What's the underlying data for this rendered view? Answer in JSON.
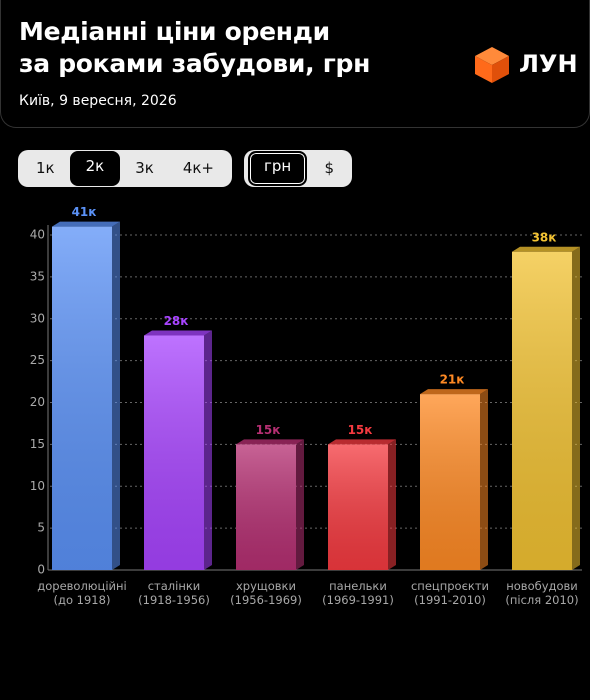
{
  "header": {
    "title": "Медіанні ціни оренди\nза роками забудови, грн",
    "subtitle": "Київ, 9 вересня, 2026",
    "logo": "ЛУН"
  },
  "controls": {
    "rooms": {
      "options": [
        "1к",
        "2к",
        "3к",
        "4к+"
      ],
      "selected": 1
    },
    "currency": {
      "options": [
        "грн",
        "$"
      ],
      "selected": 0
    }
  },
  "chart_data": {
    "type": "bar",
    "categories": [
      "дореволюційні\n(до 1918)",
      "сталінки\n(1918-1956)",
      "хрущовки\n(1956-1969)",
      "панельки\n(1969-1991)",
      "спецпроєкти\n(1991-2010)",
      "новобудови\n(після 2010)"
    ],
    "values": [
      41,
      28,
      15,
      15,
      21,
      38
    ],
    "value_labels": [
      "41к",
      "28к",
      "15к",
      "15к",
      "21к",
      "38к"
    ],
    "colors": [
      "#5b92f7",
      "#a844ff",
      "#b52f72",
      "#f53a40",
      "#ff8a24",
      "#f2c232"
    ],
    "ylim": [
      0,
      40
    ],
    "yticks": [
      0,
      5,
      10,
      15,
      20,
      25,
      30,
      35,
      40
    ],
    "grid": true
  }
}
